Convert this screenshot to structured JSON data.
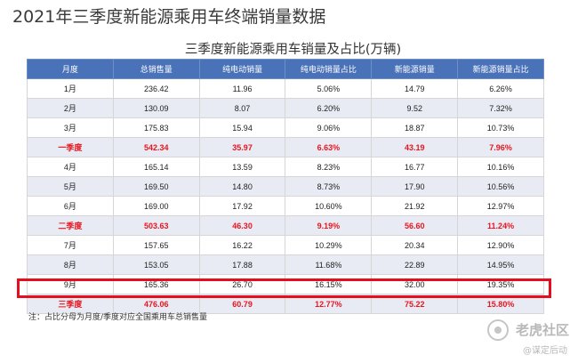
{
  "page_title": "2021年三季度新能源乘用车终端销量数据",
  "table_title": "三季度新能源乘用车销量及占比(万辆)",
  "columns": [
    "月度",
    "总销售量",
    "纯电动销量",
    "纯电动销量占比",
    "新能源销量",
    "新能源销量占比"
  ],
  "rows": [
    {
      "type": "month",
      "cells": [
        "1月",
        "236.42",
        "11.96",
        "5.06%",
        "14.79",
        "6.26%"
      ]
    },
    {
      "type": "month",
      "cells": [
        "2月",
        "130.09",
        "8.07",
        "6.20%",
        "9.52",
        "7.32%"
      ]
    },
    {
      "type": "month",
      "cells": [
        "3月",
        "175.83",
        "15.94",
        "9.06%",
        "18.87",
        "10.73%"
      ]
    },
    {
      "type": "summary",
      "cells": [
        "一季度",
        "542.34",
        "35.97",
        "6.63%",
        "43.19",
        "7.96%"
      ]
    },
    {
      "type": "month",
      "cells": [
        "4月",
        "165.14",
        "13.59",
        "8.23%",
        "16.77",
        "10.16%"
      ]
    },
    {
      "type": "month",
      "cells": [
        "5月",
        "169.50",
        "14.80",
        "8.73%",
        "17.90",
        "10.56%"
      ]
    },
    {
      "type": "month",
      "cells": [
        "6月",
        "169.00",
        "17.92",
        "10.60%",
        "21.92",
        "12.97%"
      ]
    },
    {
      "type": "summary",
      "cells": [
        "二季度",
        "503.63",
        "46.30",
        "9.19%",
        "56.60",
        "11.24%"
      ]
    },
    {
      "type": "month",
      "cells": [
        "7月",
        "157.65",
        "16.22",
        "10.29%",
        "20.34",
        "12.90%"
      ]
    },
    {
      "type": "month",
      "cells": [
        "8月",
        "153.05",
        "17.88",
        "11.68%",
        "22.89",
        "14.95%"
      ]
    },
    {
      "type": "month",
      "cells": [
        "9月",
        "165.36",
        "26.70",
        "16.15%",
        "32.00",
        "19.35%"
      ]
    },
    {
      "type": "summary",
      "highlighted": true,
      "cells": [
        "三季度",
        "476.06",
        "60.79",
        "12.77%",
        "75.22",
        "15.80%"
      ]
    }
  ],
  "footnote": "注：占比分母为月度/季度对应全国乘用车总销售量",
  "watermark": {
    "name": "老虎社区",
    "user": "@谋定后动"
  },
  "colors": {
    "header_bg": "#4a72b9",
    "header_text": "#ffffff",
    "zebra_row": "#e8ebf3",
    "summary_text": "#e8141e",
    "highlight_border": "#e60e1c"
  }
}
